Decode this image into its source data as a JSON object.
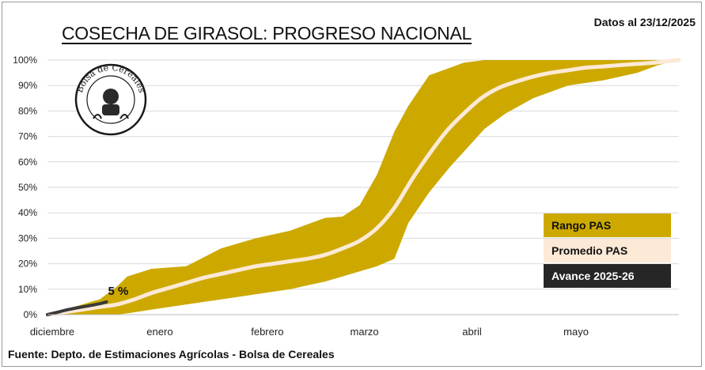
{
  "title": "COSECHA DE GIRASOL: PROGRESO NACIONAL",
  "date_note": "Datos al 23/12/2025",
  "source": "Fuente: Depto. de Estimaciones Agrícolas - Bolsa de Cereales",
  "logo": {
    "text": "Bolsa de Cereales",
    "icon": "bolsa-de-cereales-seal"
  },
  "colors": {
    "range": "#cda900",
    "mean": "#fce9d6",
    "current": "#3a3a3a"
  },
  "chart_data": {
    "type": "area",
    "title": "COSECHA DE GIRASOL: PROGRESO NACIONAL",
    "x_unit": "days since 1 December",
    "x_range": [
      0,
      182
    ],
    "x_ticks": [
      {
        "label": "diciembre",
        "x": 0
      },
      {
        "label": "enero",
        "x": 31
      },
      {
        "label": "febrero",
        "x": 62
      },
      {
        "label": "marzo",
        "x": 90
      },
      {
        "label": "abril",
        "x": 121
      },
      {
        "label": "mayo",
        "x": 151
      }
    ],
    "y_ticks": [
      "0%",
      "10%",
      "20%",
      "30%",
      "40%",
      "50%",
      "60%",
      "70%",
      "80%",
      "90%",
      "100%"
    ],
    "ylim": [
      0,
      100
    ],
    "grid": true,
    "legend": {
      "placement": "bottom-right",
      "entries": [
        "Rango PAS",
        "Promedio PAS",
        "Avance 2025-26"
      ]
    },
    "series": [
      {
        "name": "Rango PAS",
        "kind": "band",
        "x": [
          0,
          5,
          10,
          15,
          20,
          23,
          30,
          40,
          50,
          60,
          70,
          80,
          85,
          90,
          95,
          100,
          104,
          110,
          116,
          120,
          126,
          132,
          140,
          150,
          160,
          170,
          176,
          182
        ],
        "upper": [
          0,
          2,
          4,
          6,
          11,
          15,
          18,
          19,
          26,
          30,
          33,
          38,
          38.5,
          43,
          55,
          72,
          82,
          94,
          97,
          99,
          100,
          100,
          100,
          100,
          100,
          100,
          100,
          100
        ],
        "lower": [
          0,
          0,
          0,
          0,
          0,
          0.5,
          2,
          4,
          6,
          8,
          10,
          13,
          15,
          17,
          19,
          22,
          36,
          48,
          58,
          64,
          73,
          79,
          85,
          90,
          92,
          95,
          98,
          100
        ]
      },
      {
        "name": "Promedio PAS",
        "kind": "line",
        "x": [
          0,
          5,
          10,
          15,
          20,
          25,
          30,
          35,
          40,
          45,
          50,
          55,
          60,
          65,
          70,
          75,
          80,
          85,
          90,
          95,
          100,
          105,
          110,
          115,
          120,
          125,
          130,
          135,
          140,
          145,
          150,
          155,
          160,
          165,
          170,
          175,
          182
        ],
        "y": [
          0,
          1,
          2,
          3,
          4,
          6,
          8.5,
          10.5,
          12.5,
          14.5,
          16,
          17.5,
          19,
          20,
          21,
          22,
          23.5,
          26,
          29,
          34,
          42,
          53,
          63,
          72,
          79,
          85,
          89,
          91.5,
          93.5,
          95,
          96,
          97,
          97.5,
          98,
          98.5,
          99,
          100
        ]
      },
      {
        "name": "Avance 2025-26",
        "kind": "line",
        "x": [
          0,
          3,
          6,
          9,
          12,
          15,
          17
        ],
        "y": [
          0,
          1,
          2,
          2.8,
          3.5,
          4.3,
          5
        ],
        "end_label": "5 %"
      }
    ]
  }
}
